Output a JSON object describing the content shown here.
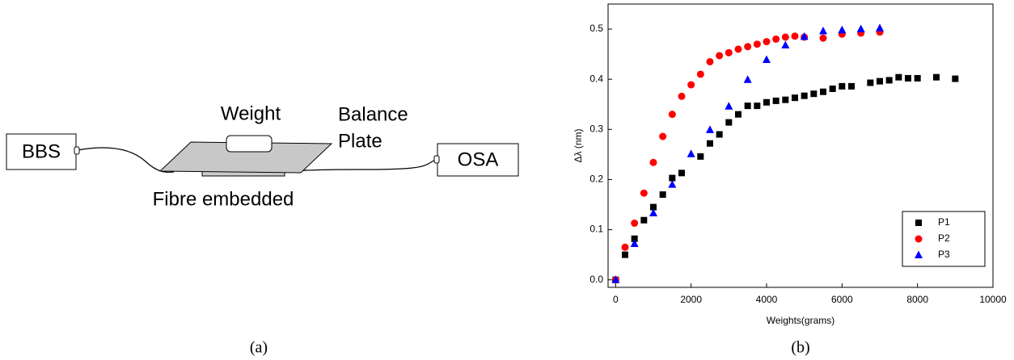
{
  "diagram": {
    "source": "BBS",
    "analyzer": "OSA",
    "weight": "Weight",
    "plate": [
      "Balance",
      "Plate"
    ],
    "fibre": "Fibre embedded"
  },
  "captions": [
    "(a)",
    "(b)"
  ],
  "chart_data": {
    "type": "scatter",
    "x_label": "Weights(grams)",
    "y_label": "Δλ (nm)",
    "xlim": [
      -200,
      10000
    ],
    "xticks": [
      0,
      2000,
      4000,
      6000,
      8000,
      10000
    ],
    "ylim": [
      -0.015,
      0.55
    ],
    "yticks": [
      {
        "value": 0,
        "label": "0.0"
      },
      0.1,
      0.2,
      0.3,
      0.4,
      0.5
    ],
    "grid": false,
    "legend": "lower right",
    "series": [
      {
        "name": "P1",
        "color": "#000000",
        "marker": "square",
        "x": [
          0,
          250,
          500,
          750,
          1000,
          1250,
          1500,
          1750,
          2250,
          2500,
          2750,
          3000,
          3250,
          3500,
          3750,
          4000,
          4250,
          4500,
          4750,
          5000,
          5250,
          5500,
          5750,
          6000,
          6250,
          6750,
          7000,
          7250,
          7500,
          7750,
          8000,
          8500,
          9000
        ],
        "values": [
          0,
          0.05,
          0.082,
          0.119,
          0.145,
          0.17,
          0.203,
          0.213,
          0.246,
          0.272,
          0.29,
          0.314,
          0.33,
          0.347,
          0.347,
          0.354,
          0.357,
          0.359,
          0.363,
          0.367,
          0.371,
          0.375,
          0.381,
          0.386,
          0.386,
          0.393,
          0.396,
          0.398,
          0.404,
          0.402,
          0.402,
          0.404,
          0.401
        ]
      },
      {
        "name": "P2",
        "color": "#ff0000",
        "marker": "circle",
        "x": [
          0,
          250,
          500,
          750,
          1000,
          1250,
          1500,
          1750,
          2000,
          2250,
          2500,
          2750,
          3000,
          3250,
          3500,
          3750,
          4000,
          4250,
          4500,
          4750,
          5000,
          5500,
          6000,
          6500,
          7000
        ],
        "values": [
          0,
          0.065,
          0.113,
          0.173,
          0.234,
          0.286,
          0.33,
          0.366,
          0.389,
          0.41,
          0.435,
          0.447,
          0.453,
          0.46,
          0.465,
          0.47,
          0.475,
          0.48,
          0.484,
          0.486,
          0.484,
          0.482,
          0.49,
          0.492,
          0.494
        ]
      },
      {
        "name": "P3",
        "color": "#0000ff",
        "marker": "triangle",
        "x": [
          0,
          500,
          1000,
          1500,
          2000,
          2500,
          3000,
          3500,
          4000,
          4500,
          5000,
          5500,
          6000,
          6500,
          7000
        ],
        "values": [
          0,
          0.072,
          0.133,
          0.19,
          0.251,
          0.299,
          0.346,
          0.399,
          0.439,
          0.468,
          0.485,
          0.496,
          0.498,
          0.5,
          0.502
        ]
      }
    ]
  }
}
